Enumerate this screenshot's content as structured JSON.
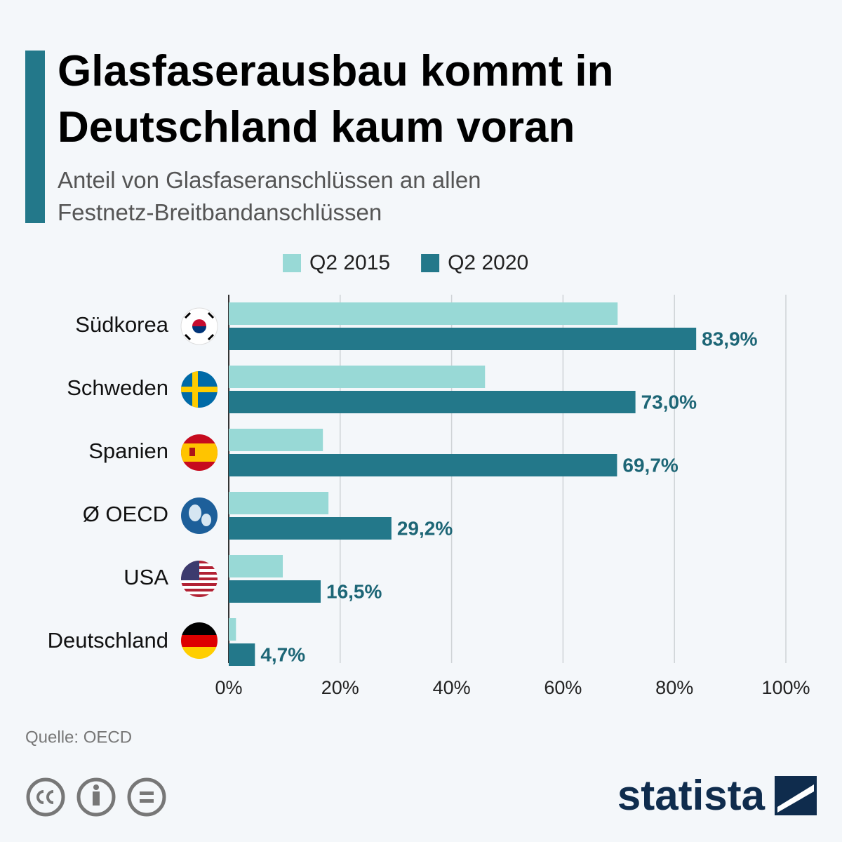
{
  "chart_data": {
    "type": "bar",
    "orientation": "horizontal",
    "title": "Glasfaserausbau kommt in Deutschland kaum voran",
    "subtitle": "Anteil von Glasfaseranschlüssen an allen Festnetz-Breitbandanschlüssen",
    "categories": [
      "Südkorea",
      "Schweden",
      "Spanien",
      "Ø OECD",
      "USA",
      "Deutschland"
    ],
    "series": [
      {
        "name": "Q2 2015",
        "color": "#98d9d6",
        "values": [
          69.8,
          46.0,
          16.9,
          17.9,
          9.7,
          1.3
        ]
      },
      {
        "name": "Q2 2020",
        "color": "#23788a",
        "values": [
          83.9,
          73.0,
          69.7,
          29.2,
          16.5,
          4.7
        ],
        "value_labels": [
          "83,9%",
          "73,0%",
          "69,7%",
          "29,2%",
          "16,5%",
          "4,7%"
        ]
      }
    ],
    "xlim": [
      0,
      100
    ],
    "xticks": [
      {
        "value": 0,
        "label": "0%"
      },
      {
        "value": 20,
        "label": "20%"
      },
      {
        "value": 40,
        "label": "40%"
      },
      {
        "value": 60,
        "label": "60%"
      },
      {
        "value": 80,
        "label": "80%"
      },
      {
        "value": 100,
        "label": "100%"
      }
    ],
    "grid": true,
    "legend": "top"
  },
  "source": "Quelle: OECD",
  "brand": "statista"
}
